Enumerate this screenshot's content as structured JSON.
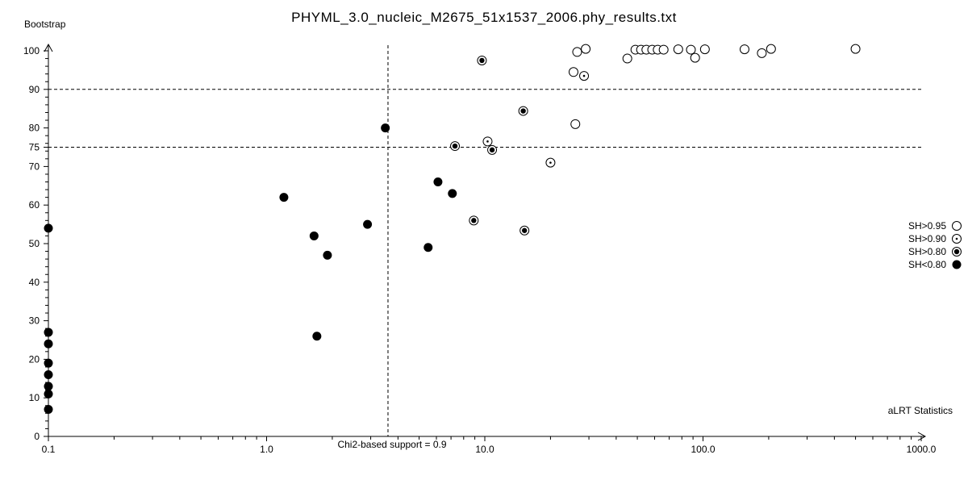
{
  "colors": {
    "foreground": "#000000",
    "background": "#ffffff"
  },
  "chart_data": {
    "type": "scatter",
    "title": "PHYML_3.0_nucleic_M2675_51x1537_2006.phy_results.txt",
    "xlabel": "aLRT Statistics",
    "ylabel": "Bootstrap",
    "x_scale": "log",
    "xlim": [
      0.1,
      1000
    ],
    "ylim": [
      0,
      100
    ],
    "x_ticks": [
      0.1,
      1,
      10,
      100,
      1000
    ],
    "x_tick_labels": [
      "0.1",
      "1.0",
      "10.0",
      "100.0",
      "1000.0"
    ],
    "y_ticks": [
      0,
      10,
      20,
      30,
      40,
      50,
      60,
      70,
      75,
      80,
      90,
      100
    ],
    "y_minor_step": 2,
    "grid": false,
    "legend_position": "right",
    "reference_lines": {
      "horizontal_y": [
        90,
        75
      ],
      "vertical_x": 3.6,
      "vertical_label": "Chi2-based support = 0.9"
    },
    "legend": [
      {
        "label": "SH>0.95",
        "marker": "open"
      },
      {
        "label": "SH>0.90",
        "marker": "open-dot"
      },
      {
        "label": "SH>0.80",
        "marker": "open-filled-dot"
      },
      {
        "label": "SH<0.80",
        "marker": "filled"
      }
    ],
    "series": [
      {
        "name": "SH>0.95",
        "marker": "open",
        "points": [
          [
            25.5,
            94.5
          ],
          [
            26.5,
            99.7
          ],
          [
            29,
            100.5
          ],
          [
            26,
            81
          ],
          [
            45,
            98
          ],
          [
            49,
            100.3
          ],
          [
            52,
            100.3
          ],
          [
            55,
            100.3
          ],
          [
            58.5,
            100.3
          ],
          [
            62,
            100.3
          ],
          [
            66,
            100.3
          ],
          [
            77,
            100.4
          ],
          [
            88,
            100.3
          ],
          [
            92,
            98.2
          ],
          [
            102,
            100.4
          ],
          [
            155,
            100.4
          ],
          [
            186,
            99.4
          ],
          [
            205,
            100.5
          ],
          [
            500,
            100.5
          ]
        ]
      },
      {
        "name": "SH>0.90",
        "marker": "open-dot",
        "points": [
          [
            10.3,
            76.5
          ],
          [
            20,
            71
          ],
          [
            28.5,
            93.5
          ]
        ]
      },
      {
        "name": "SH>0.80",
        "marker": "open-filled-dot",
        "points": [
          [
            7.3,
            75.3
          ],
          [
            8.9,
            56
          ],
          [
            9.7,
            97.5
          ],
          [
            10.8,
            74.3
          ],
          [
            15,
            84.4
          ],
          [
            15.2,
            53.4
          ]
        ]
      },
      {
        "name": "SH<0.80",
        "marker": "filled",
        "points": [
          [
            0.1,
            54
          ],
          [
            0.1,
            27
          ],
          [
            0.1,
            24
          ],
          [
            0.1,
            19
          ],
          [
            0.1,
            16
          ],
          [
            0.1,
            13
          ],
          [
            0.1,
            11
          ],
          [
            0.1,
            7
          ],
          [
            1.2,
            62
          ],
          [
            1.65,
            52
          ],
          [
            1.7,
            26
          ],
          [
            1.9,
            47
          ],
          [
            2.9,
            55
          ],
          [
            3.5,
            80
          ],
          [
            5.5,
            49
          ],
          [
            6.1,
            66
          ],
          [
            7.1,
            63
          ]
        ]
      }
    ]
  }
}
